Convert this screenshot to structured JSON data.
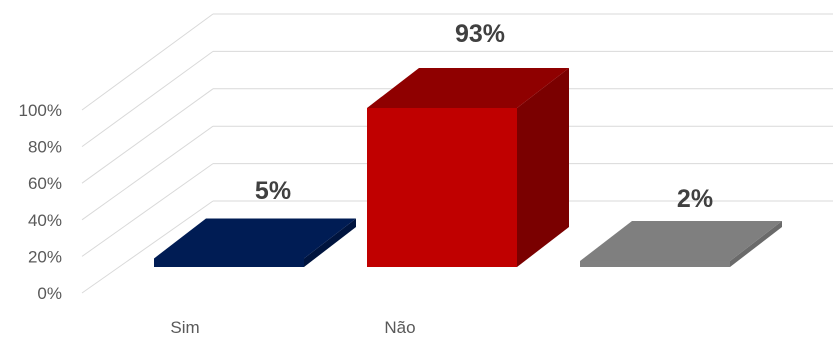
{
  "chart_data": {
    "type": "bar",
    "categories": [
      "Sim",
      "Não",
      ""
    ],
    "values": [
      5,
      93,
      2
    ],
    "data_labels": [
      "5%",
      "93%",
      "2%"
    ],
    "ylim": [
      0,
      100
    ],
    "yticks": [
      "0%",
      "20%",
      "40%",
      "60%",
      "80%",
      "100%"
    ],
    "grid": true,
    "three_d": true,
    "colors": {
      "Sim": {
        "face": "#001c54",
        "top": "#001c54",
        "side": "#00143e"
      },
      "Não": {
        "face": "#c00000",
        "top": "#8f0000",
        "side": "#7a0000"
      },
      "third": {
        "face": "#808080",
        "top": "#7f7f7f",
        "side": "#6a6a6a"
      },
      "grid": "#d9d9d9",
      "text": "#595959",
      "label": "#404040"
    }
  }
}
